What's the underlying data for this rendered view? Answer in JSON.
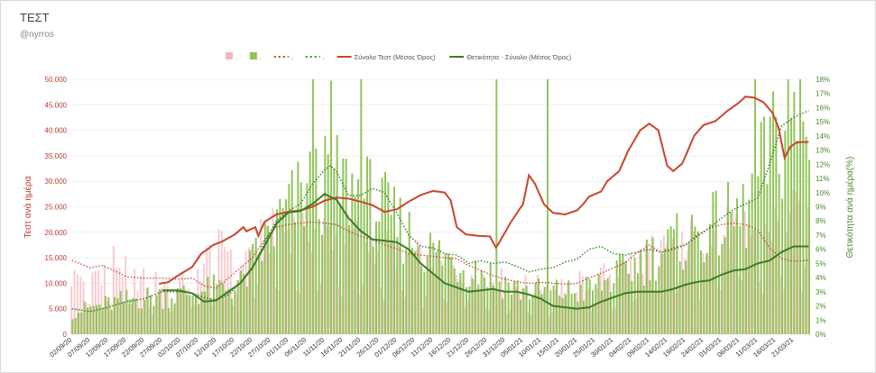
{
  "header": {
    "title": "ΤΕΣΤ",
    "subtitle": "@nyrros"
  },
  "chart_data": {
    "type": "bar",
    "y_left": {
      "label": "Τεστ ανά ημέρα",
      "range": [
        0,
        50000
      ],
      "ticks": [
        "0",
        "5.000",
        "10.000",
        "15.000",
        "20.000",
        "25.000",
        "30.000",
        "35.000",
        "40.000",
        "45.000",
        "50.000"
      ]
    },
    "y_right": {
      "label": "Θετικότητα ανά ημέρα(%)",
      "range": [
        0,
        18
      ],
      "ticks": [
        "0%",
        "1%",
        "2%",
        "3%",
        "4%",
        "5%",
        "6%",
        "7%",
        "8%",
        "9%",
        "10%",
        "11%",
        "12%",
        "13%",
        "14%",
        "15%",
        "16%",
        "17%",
        "18%"
      ]
    },
    "x_ticks": [
      "02/09/20",
      "07/09/20",
      "12/09/20",
      "17/09/20",
      "22/09/20",
      "27/09/20",
      "02/10/20",
      "07/10/20",
      "12/10/20",
      "17/10/20",
      "22/10/20",
      "27/10/20",
      "01/11/20",
      "06/11/20",
      "11/11/20",
      "16/11/20",
      "21/11/20",
      "26/11/20",
      "01/12/20",
      "06/12/20",
      "11/12/20",
      "16/12/20",
      "21/12/20",
      "26/12/20",
      "31/12/20",
      "05/01/21",
      "10/01/21",
      "15/01/21",
      "20/01/21",
      "25/01/21",
      "30/01/21",
      "04/02/21",
      "09/02/21",
      "14/02/21",
      "19/02/21",
      "24/02/21",
      "01/03/21",
      "06/03/21",
      "11/03/21",
      "16/03/21",
      "21/03/21"
    ],
    "legend": [
      {
        "name": ".",
        "kind": "bar",
        "color": "#f4b6bd"
      },
      {
        "name": ".",
        "kind": "bar",
        "color": "#8fc45a"
      },
      {
        "name": ".",
        "kind": "dotted",
        "color": "#c0392b"
      },
      {
        "name": ".",
        "kind": "dotted",
        "color": "#3c8a2e"
      },
      {
        "name": "Σύνολο Τεστ (Μέσος Όρος)",
        "kind": "line",
        "color": "#c9452c"
      },
      {
        "name": "Θετικότητα - Σύνολο (Μέσος Όρος)",
        "kind": "line",
        "color": "#3c7d23"
      }
    ],
    "anchors": {
      "tests_avg": [
        [
          0,
          null
        ],
        [
          27,
          null
        ],
        [
          28,
          9800
        ],
        [
          32,
          10200
        ],
        [
          35,
          11400
        ],
        [
          40,
          13200
        ],
        [
          43,
          15800
        ],
        [
          47,
          17500
        ],
        [
          50,
          18200
        ],
        [
          54,
          19500
        ],
        [
          57,
          21000
        ],
        [
          58,
          20200
        ],
        [
          61,
          21000
        ],
        [
          62,
          19300
        ],
        [
          64,
          22000
        ],
        [
          68,
          23500
        ],
        [
          72,
          24000
        ],
        [
          76,
          24300
        ],
        [
          80,
          25000
        ],
        [
          84,
          26200
        ],
        [
          88,
          26800
        ],
        [
          92,
          26600
        ],
        [
          96,
          26000
        ],
        [
          100,
          25300
        ],
        [
          104,
          24000
        ],
        [
          108,
          24500
        ],
        [
          112,
          26000
        ],
        [
          116,
          27300
        ],
        [
          120,
          28100
        ],
        [
          124,
          27800
        ],
        [
          126,
          26200
        ],
        [
          128,
          21000
        ],
        [
          131,
          19600
        ],
        [
          135,
          19300
        ],
        [
          139,
          19200
        ],
        [
          141,
          17000
        ],
        [
          142,
          17900
        ],
        [
          146,
          22000
        ],
        [
          150,
          25500
        ],
        [
          152,
          31200
        ],
        [
          154,
          29500
        ],
        [
          157,
          25500
        ],
        [
          160,
          23800
        ],
        [
          164,
          23500
        ],
        [
          168,
          24300
        ],
        [
          170,
          25500
        ],
        [
          172,
          27000
        ],
        [
          176,
          28000
        ],
        [
          178,
          30000
        ],
        [
          182,
          32000
        ],
        [
          185,
          36000
        ],
        [
          189,
          40000
        ],
        [
          192,
          41300
        ],
        [
          195,
          40000
        ],
        [
          198,
          33000
        ],
        [
          200,
          32000
        ],
        [
          203,
          33500
        ],
        [
          207,
          39000
        ],
        [
          210,
          41000
        ],
        [
          214,
          41800
        ],
        [
          218,
          43800
        ],
        [
          222,
          45500
        ],
        [
          224,
          46600
        ],
        [
          227,
          46400
        ],
        [
          230,
          45500
        ],
        [
          233,
          43400
        ],
        [
          235,
          40500
        ],
        [
          237,
          34600
        ],
        [
          239,
          36800
        ],
        [
          241,
          37600
        ],
        [
          243,
          37700
        ],
        [
          245,
          37700
        ]
      ],
      "tests_dotted": [
        [
          0,
          14500
        ],
        [
          3,
          13800
        ],
        [
          6,
          13000
        ],
        [
          10,
          13500
        ],
        [
          14,
          12500
        ],
        [
          18,
          11300
        ],
        [
          24,
          11000
        ],
        [
          30,
          11000
        ],
        [
          35,
          10800
        ],
        [
          40,
          11000
        ],
        [
          44,
          9500
        ],
        [
          48,
          9000
        ],
        [
          52,
          11000
        ],
        [
          56,
          13000
        ],
        [
          60,
          15000
        ],
        [
          64,
          18500
        ],
        [
          68,
          21000
        ],
        [
          72,
          21500
        ],
        [
          76,
          21800
        ],
        [
          80,
          22000
        ],
        [
          84,
          21800
        ],
        [
          88,
          21500
        ],
        [
          92,
          20200
        ],
        [
          96,
          19200
        ],
        [
          100,
          18500
        ],
        [
          104,
          17500
        ],
        [
          108,
          16800
        ],
        [
          112,
          15800
        ],
        [
          116,
          15500
        ],
        [
          120,
          15300
        ],
        [
          124,
          15000
        ],
        [
          128,
          14800
        ],
        [
          132,
          13500
        ],
        [
          136,
          12500
        ],
        [
          140,
          11500
        ],
        [
          144,
          10800
        ],
        [
          148,
          10300
        ],
        [
          152,
          10000
        ],
        [
          156,
          10200
        ],
        [
          160,
          10000
        ],
        [
          164,
          9800
        ],
        [
          168,
          10000
        ],
        [
          172,
          11000
        ],
        [
          176,
          12000
        ],
        [
          180,
          13000
        ],
        [
          184,
          14000
        ],
        [
          188,
          16000
        ],
        [
          192,
          17500
        ],
        [
          196,
          16000
        ],
        [
          200,
          17000
        ],
        [
          204,
          17500
        ],
        [
          208,
          19500
        ],
        [
          212,
          20800
        ],
        [
          216,
          21500
        ],
        [
          220,
          21800
        ],
        [
          224,
          21500
        ],
        [
          228,
          20500
        ],
        [
          232,
          17000
        ],
        [
          236,
          14800
        ],
        [
          240,
          14300
        ],
        [
          245,
          14500
        ]
      ],
      "pos_dotted": [
        [
          0,
          1.8
        ],
        [
          6,
          1.6
        ],
        [
          12,
          1.9
        ],
        [
          18,
          2.3
        ],
        [
          24,
          2.5
        ],
        [
          30,
          3.0
        ],
        [
          36,
          3.0
        ],
        [
          40,
          2.9
        ],
        [
          44,
          2.6
        ],
        [
          48,
          2.4
        ],
        [
          52,
          2.8
        ],
        [
          56,
          3.6
        ],
        [
          60,
          4.6
        ],
        [
          64,
          6.5
        ],
        [
          68,
          8.0
        ],
        [
          72,
          8.7
        ],
        [
          76,
          9.2
        ],
        [
          80,
          10.6
        ],
        [
          84,
          11.6
        ],
        [
          86,
          11.9
        ],
        [
          88,
          11.5
        ],
        [
          92,
          9.8
        ],
        [
          96,
          9.8
        ],
        [
          100,
          10.3
        ],
        [
          104,
          10.0
        ],
        [
          108,
          8.6
        ],
        [
          112,
          7.0
        ],
        [
          116,
          6.2
        ],
        [
          120,
          6.1
        ],
        [
          124,
          5.7
        ],
        [
          128,
          5.6
        ],
        [
          132,
          5.0
        ],
        [
          136,
          5.2
        ],
        [
          140,
          5.0
        ],
        [
          144,
          5.1
        ],
        [
          148,
          4.8
        ],
        [
          152,
          4.4
        ],
        [
          156,
          4.6
        ],
        [
          160,
          4.7
        ],
        [
          164,
          5.1
        ],
        [
          168,
          5.3
        ],
        [
          172,
          6.0
        ],
        [
          176,
          6.2
        ],
        [
          180,
          5.7
        ],
        [
          184,
          5.6
        ],
        [
          188,
          5.8
        ],
        [
          192,
          6.0
        ],
        [
          196,
          5.8
        ],
        [
          200,
          6.0
        ],
        [
          204,
          6.3
        ],
        [
          208,
          6.9
        ],
        [
          212,
          7.5
        ],
        [
          216,
          8.2
        ],
        [
          220,
          8.8
        ],
        [
          224,
          9.2
        ],
        [
          228,
          9.6
        ],
        [
          232,
          12.0
        ],
        [
          236,
          14.7
        ],
        [
          240,
          15.3
        ],
        [
          245,
          15.8
        ]
      ],
      "pos_avg": [
        [
          0,
          null
        ],
        [
          28,
          null
        ],
        [
          29,
          3.1
        ],
        [
          35,
          3.1
        ],
        [
          40,
          2.9
        ],
        [
          44,
          2.3
        ],
        [
          48,
          2.4
        ],
        [
          52,
          3.0
        ],
        [
          56,
          3.6
        ],
        [
          60,
          4.7
        ],
        [
          64,
          6.2
        ],
        [
          68,
          7.8
        ],
        [
          72,
          8.6
        ],
        [
          76,
          8.7
        ],
        [
          80,
          9.2
        ],
        [
          84,
          9.9
        ],
        [
          88,
          9.5
        ],
        [
          92,
          8.2
        ],
        [
          96,
          7.3
        ],
        [
          100,
          6.7
        ],
        [
          104,
          6.6
        ],
        [
          108,
          6.5
        ],
        [
          112,
          6.0
        ],
        [
          116,
          5.0
        ],
        [
          120,
          4.3
        ],
        [
          124,
          3.6
        ],
        [
          128,
          3.3
        ],
        [
          132,
          3.0
        ],
        [
          136,
          3.1
        ],
        [
          140,
          3.2
        ],
        [
          144,
          3.0
        ],
        [
          148,
          3.0
        ],
        [
          152,
          2.8
        ],
        [
          156,
          2.5
        ],
        [
          160,
          2.0
        ],
        [
          164,
          1.9
        ],
        [
          168,
          1.8
        ],
        [
          172,
          1.9
        ],
        [
          176,
          2.3
        ],
        [
          180,
          2.6
        ],
        [
          184,
          2.9
        ],
        [
          188,
          3.0
        ],
        [
          192,
          3.0
        ],
        [
          196,
          3.0
        ],
        [
          200,
          3.2
        ],
        [
          204,
          3.5
        ],
        [
          208,
          3.7
        ],
        [
          212,
          3.8
        ],
        [
          216,
          4.2
        ],
        [
          220,
          4.5
        ],
        [
          224,
          4.6
        ],
        [
          228,
          5.0
        ],
        [
          232,
          5.2
        ],
        [
          236,
          5.8
        ],
        [
          240,
          6.2
        ],
        [
          245,
          6.2
        ]
      ],
      "pos_bars_base": [
        [
          0,
          1.6
        ],
        [
          20,
          2.5
        ],
        [
          40,
          2.9
        ],
        [
          56,
          3.5
        ],
        [
          64,
          6.5
        ],
        [
          72,
          8.8
        ],
        [
          80,
          10.4
        ],
        [
          88,
          10.6
        ],
        [
          96,
          10.0
        ],
        [
          104,
          8.5
        ],
        [
          112,
          7.0
        ],
        [
          120,
          5.8
        ],
        [
          128,
          5.0
        ],
        [
          136,
          4.5
        ],
        [
          148,
          3.2
        ],
        [
          156,
          3.0
        ],
        [
          168,
          3.0
        ],
        [
          176,
          3.5
        ],
        [
          184,
          4.5
        ],
        [
          192,
          5.5
        ],
        [
          200,
          6.3
        ],
        [
          208,
          7.0
        ],
        [
          216,
          7.8
        ],
        [
          224,
          8.5
        ],
        [
          232,
          13.0
        ],
        [
          240,
          14.2
        ],
        [
          245,
          14.5
        ]
      ],
      "pos_spikes": [
        [
          80,
          18
        ],
        [
          86,
          17.9
        ],
        [
          96,
          18
        ],
        [
          141,
          18
        ],
        [
          158,
          18
        ],
        [
          227,
          18
        ],
        [
          238,
          18
        ],
        [
          242,
          18
        ]
      ],
      "tests_bars_base": [
        [
          0,
          12000
        ],
        [
          10,
          13500
        ],
        [
          14,
          16000
        ],
        [
          20,
          12000
        ],
        [
          30,
          10800
        ],
        [
          40,
          11000
        ],
        [
          46,
          17000
        ],
        [
          52,
          19000
        ],
        [
          56,
          15000
        ],
        [
          60,
          18500
        ],
        [
          66,
          21500
        ],
        [
          72,
          22500
        ],
        [
          80,
          22000
        ],
        [
          90,
          21500
        ],
        [
          100,
          19500
        ],
        [
          110,
          17000
        ],
        [
          120,
          15500
        ],
        [
          130,
          13500
        ],
        [
          140,
          12000
        ],
        [
          150,
          10500
        ],
        [
          160,
          10000
        ],
        [
          170,
          11000
        ],
        [
          180,
          13000
        ],
        [
          190,
          16500
        ],
        [
          200,
          19000
        ],
        [
          210,
          21000
        ],
        [
          220,
          22500
        ],
        [
          230,
          22000
        ],
        [
          240,
          25000
        ],
        [
          245,
          26000
        ]
      ]
    }
  }
}
